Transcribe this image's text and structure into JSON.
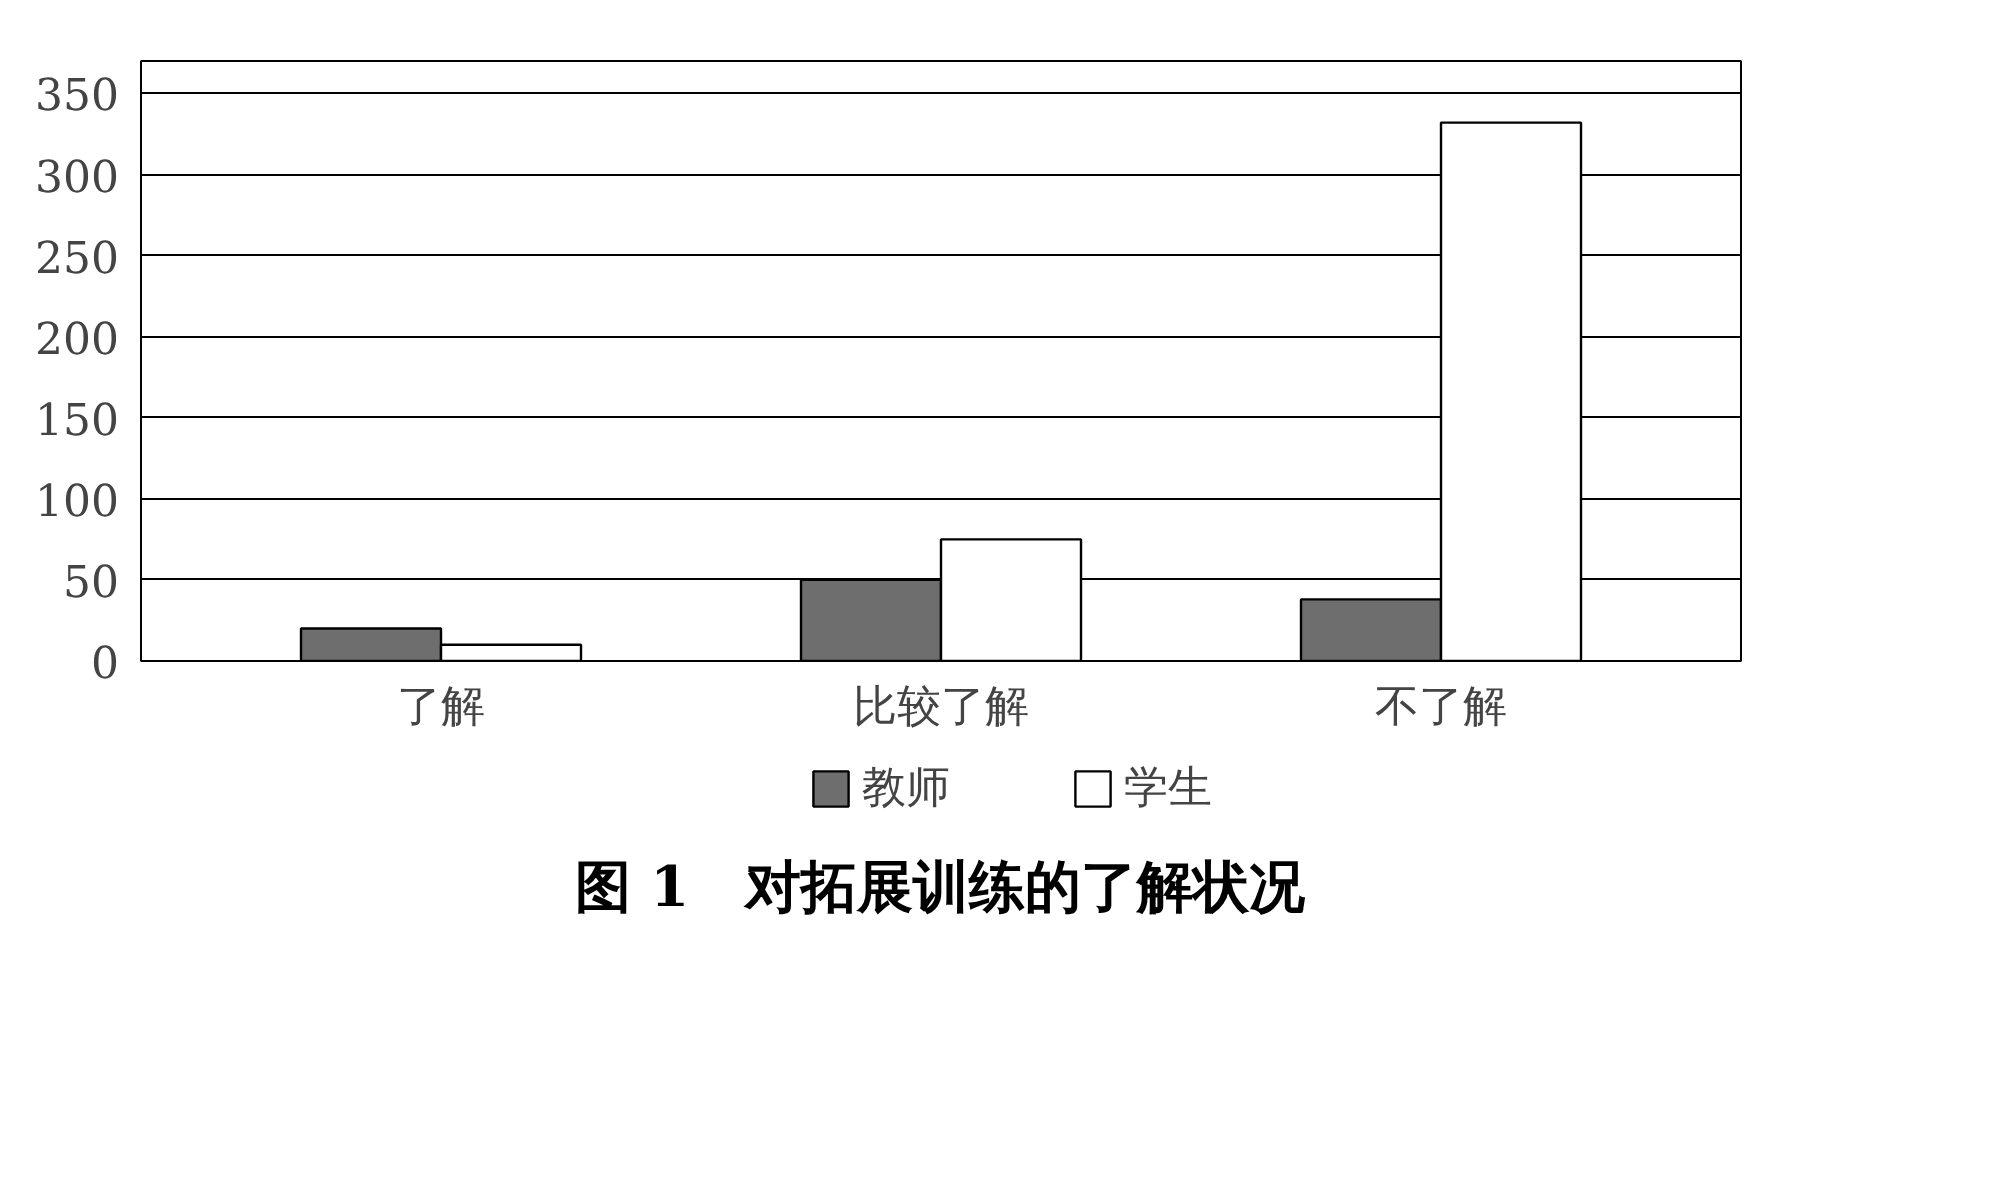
{
  "chart_data": {
    "type": "bar",
    "title": "图 1　对拓展训练的了解状况",
    "categories": [
      "了解",
      "比较了解",
      "不了解"
    ],
    "series": [
      {
        "name": "教师",
        "color": "#6e6e6e",
        "values": [
          20,
          50,
          38
        ]
      },
      {
        "name": "学生",
        "color": "#ffffff",
        "values": [
          10,
          75,
          332
        ]
      }
    ],
    "ylim": [
      0,
      370
    ],
    "yticks": [
      0,
      50,
      100,
      150,
      200,
      250,
      300,
      350
    ],
    "grid": "y",
    "legend": "bottom"
  }
}
